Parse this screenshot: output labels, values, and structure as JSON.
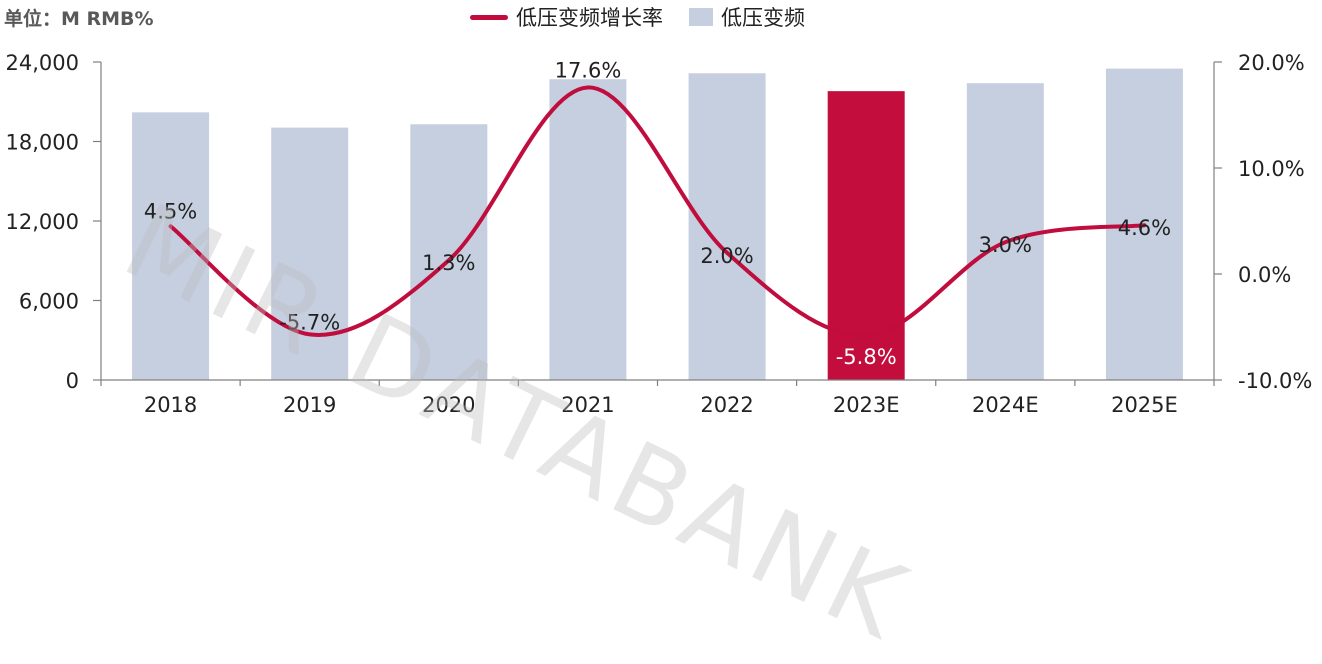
{
  "unit_label": "单位：M RMB%",
  "watermark": "MIR DATABANK",
  "legend": {
    "line": "低压变频增长率",
    "bar": "低压变频"
  },
  "colors": {
    "bar": "#c5cfe0",
    "highlight_bar": "#c30d3d",
    "line": "#c00d3d"
  },
  "chart_data": {
    "type": "bar+line",
    "categories": [
      "2018",
      "2019",
      "2020",
      "2021",
      "2022",
      "2023E",
      "2024E",
      "2025E"
    ],
    "series": [
      {
        "name": "低压变频",
        "type": "bar",
        "axis": "left",
        "values": [
          20200,
          19050,
          19300,
          22700,
          23150,
          21800,
          22400,
          23500
        ],
        "highlight_index": 5
      },
      {
        "name": "低压变频增长率",
        "type": "line",
        "axis": "right",
        "values": [
          4.5,
          -5.7,
          1.3,
          17.6,
          2.0,
          -5.8,
          3.0,
          4.6
        ],
        "labels": [
          "4.5%",
          "-5.7%",
          "1.3%",
          "17.6%",
          "2.0%",
          "-5.8%",
          "3.0%",
          "4.6%"
        ]
      }
    ],
    "y_left": {
      "range": [
        0,
        24000
      ],
      "ticks": [
        0,
        6000,
        12000,
        18000,
        24000
      ],
      "tick_labels": [
        "0",
        "6,000",
        "12,000",
        "18,000",
        "24,000"
      ]
    },
    "y_right": {
      "range": [
        -10,
        20
      ],
      "ticks": [
        -10,
        0,
        10,
        20
      ],
      "tick_labels": [
        "-10.0%",
        "0.0%",
        "10.0%",
        "20.0%"
      ]
    },
    "grid": false,
    "legend_position": "top-center"
  }
}
